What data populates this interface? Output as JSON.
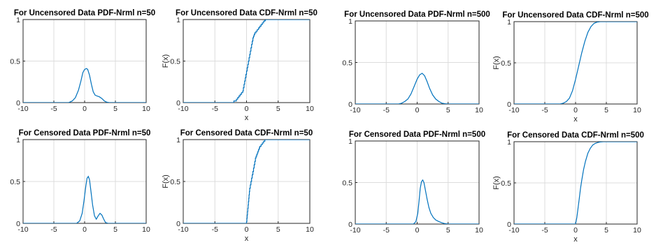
{
  "chart_data": [
    {
      "type": "line",
      "title": "For Uncensored Data PDF-Nrml n=50",
      "xlabel": "",
      "ylabel": "",
      "xlim": [
        -10,
        10
      ],
      "ylim": [
        0,
        1
      ],
      "xticks": [
        -10,
        -5,
        0,
        5,
        10
      ],
      "yticks": [
        0,
        0.5,
        1
      ],
      "ytick_labels": [
        "0",
        "0.5",
        "1"
      ],
      "grid": true,
      "series": [
        {
          "color": "#0072bd",
          "x": [
            -2.6,
            -2.0,
            -1.5,
            -1.0,
            -0.6,
            -0.3,
            0.0,
            0.3,
            0.5,
            0.8,
            1.1,
            1.4,
            1.7,
            2.0,
            2.4,
            2.8,
            3.2,
            3.6,
            4.0
          ],
          "y": [
            0.0,
            0.02,
            0.06,
            0.15,
            0.26,
            0.36,
            0.4,
            0.41,
            0.4,
            0.33,
            0.22,
            0.13,
            0.09,
            0.08,
            0.07,
            0.05,
            0.02,
            0.005,
            0.0
          ]
        }
      ]
    },
    {
      "type": "line",
      "title": "For Uncensored Data CDF-Nrml n=50",
      "xlabel": "x",
      "ylabel": "F(x)",
      "xlim": [
        -10,
        10
      ],
      "ylim": [
        0,
        1
      ],
      "xticks": [
        -10,
        -5,
        0,
        5,
        10
      ],
      "yticks": [
        0,
        0.5,
        1
      ],
      "ytick_labels": [
        "0",
        "0.5",
        "1"
      ],
      "grid": true,
      "series": [
        {
          "color": "#0072bd",
          "step": true,
          "x": [
            -2.0,
            -1.6,
            -1.4,
            -1.2,
            -1.0,
            -0.8,
            -0.6,
            -0.5,
            -0.4,
            -0.3,
            -0.2,
            -0.1,
            0.0,
            0.1,
            0.2,
            0.3,
            0.4,
            0.5,
            0.6,
            0.7,
            0.8,
            0.9,
            1.0,
            1.1,
            1.2,
            1.3,
            1.5,
            1.7,
            1.9,
            2.1,
            2.3,
            2.5,
            2.7,
            2.9,
            3.0
          ],
          "y": [
            0.02,
            0.04,
            0.06,
            0.08,
            0.1,
            0.12,
            0.14,
            0.18,
            0.22,
            0.26,
            0.3,
            0.34,
            0.38,
            0.42,
            0.46,
            0.5,
            0.54,
            0.58,
            0.62,
            0.66,
            0.7,
            0.74,
            0.78,
            0.8,
            0.82,
            0.84,
            0.86,
            0.88,
            0.9,
            0.92,
            0.94,
            0.96,
            0.98,
            0.99,
            1.0
          ]
        }
      ]
    },
    {
      "type": "line",
      "title": "For Uncensored Data PDF-Nrml n=500",
      "xlabel": "",
      "ylabel": "",
      "xlim": [
        -10,
        10
      ],
      "ylim": [
        0,
        1
      ],
      "xticks": [
        -10,
        -5,
        0,
        5,
        10
      ],
      "yticks": [
        0,
        0.5,
        1
      ],
      "ytick_labels": [
        "0",
        "0.5",
        "1"
      ],
      "grid": true,
      "series": [
        {
          "color": "#0072bd",
          "x": [
            -3.0,
            -2.5,
            -2.0,
            -1.5,
            -1.0,
            -0.5,
            0.0,
            0.4,
            0.8,
            1.2,
            1.6,
            2.0,
            2.5,
            3.0,
            3.5,
            4.0,
            4.5,
            5.0
          ],
          "y": [
            0.0,
            0.01,
            0.03,
            0.06,
            0.12,
            0.21,
            0.3,
            0.35,
            0.37,
            0.34,
            0.27,
            0.19,
            0.11,
            0.06,
            0.03,
            0.01,
            0.003,
            0.0
          ]
        }
      ]
    },
    {
      "type": "line",
      "title": "For Uncensored Data CDF-Nrml n=500",
      "xlabel": "x",
      "ylabel": "F(x)",
      "xlim": [
        -10,
        10
      ],
      "ylim": [
        0,
        1
      ],
      "xticks": [
        -10,
        -5,
        0,
        5,
        10
      ],
      "yticks": [
        0,
        0.5,
        1
      ],
      "ytick_labels": [
        "0",
        "0.5",
        "1"
      ],
      "grid": true,
      "series": [
        {
          "color": "#0072bd",
          "x": [
            -2.5,
            -2.0,
            -1.5,
            -1.0,
            -0.5,
            0.0,
            0.5,
            1.0,
            1.5,
            2.0,
            2.5,
            3.0,
            3.5,
            4.0
          ],
          "y": [
            0.0,
            0.01,
            0.03,
            0.07,
            0.16,
            0.3,
            0.46,
            0.62,
            0.76,
            0.87,
            0.94,
            0.98,
            0.995,
            1.0
          ]
        }
      ]
    },
    {
      "type": "line",
      "title": "For Censored Data PDF-Nrml n=50",
      "xlabel": "",
      "ylabel": "",
      "xlim": [
        -10,
        10
      ],
      "ylim": [
        0,
        1
      ],
      "xticks": [
        -10,
        -5,
        0,
        5,
        10
      ],
      "yticks": [
        0,
        0.5,
        1
      ],
      "ytick_labels": [
        "0",
        "0.5",
        "1"
      ],
      "grid": true,
      "series": [
        {
          "color": "#0072bd",
          "x": [
            -1.3,
            -0.8,
            -0.4,
            -0.1,
            0.2,
            0.4,
            0.6,
            0.8,
            1.0,
            1.3,
            1.6,
            1.9,
            2.2,
            2.5,
            2.8,
            3.1,
            3.4,
            3.8
          ],
          "y": [
            0.0,
            0.03,
            0.12,
            0.27,
            0.45,
            0.54,
            0.56,
            0.52,
            0.4,
            0.22,
            0.09,
            0.05,
            0.09,
            0.12,
            0.1,
            0.05,
            0.01,
            0.0
          ]
        }
      ]
    },
    {
      "type": "line",
      "title": "For Censored Data CDF-Nrml n=50",
      "xlabel": "x",
      "ylabel": "F(x)",
      "xlim": [
        -10,
        10
      ],
      "ylim": [
        0,
        1
      ],
      "xticks": [
        -10,
        -5,
        0,
        5,
        10
      ],
      "yticks": [
        0,
        0.5,
        1
      ],
      "ytick_labels": [
        "0",
        "0.5",
        "1"
      ],
      "grid": true,
      "series": [
        {
          "color": "#0072bd",
          "step": true,
          "x": [
            0.0,
            0.05,
            0.1,
            0.15,
            0.2,
            0.25,
            0.3,
            0.35,
            0.4,
            0.45,
            0.5,
            0.6,
            0.7,
            0.8,
            0.9,
            1.0,
            1.1,
            1.2,
            1.3,
            1.4,
            1.5,
            1.6,
            1.7,
            1.8,
            1.9,
            2.0,
            2.1,
            2.3,
            2.5,
            2.7,
            2.9
          ],
          "y": [
            0.02,
            0.06,
            0.1,
            0.14,
            0.18,
            0.22,
            0.26,
            0.3,
            0.34,
            0.38,
            0.42,
            0.46,
            0.5,
            0.54,
            0.58,
            0.62,
            0.66,
            0.7,
            0.74,
            0.78,
            0.8,
            0.82,
            0.84,
            0.86,
            0.88,
            0.9,
            0.92,
            0.94,
            0.96,
            0.98,
            1.0
          ]
        }
      ]
    },
    {
      "type": "line",
      "title": "For Censored Data PDF-Nrml n=500",
      "xlabel": "",
      "ylabel": "",
      "xlim": [
        -10,
        10
      ],
      "ylim": [
        0,
        1
      ],
      "xticks": [
        -10,
        -5,
        0,
        5,
        10
      ],
      "yticks": [
        0,
        0.5,
        1
      ],
      "ytick_labels": [
        "0",
        "0.5",
        "1"
      ],
      "grid": true,
      "series": [
        {
          "color": "#0072bd",
          "x": [
            -0.6,
            -0.2,
            0.1,
            0.3,
            0.5,
            0.7,
            0.9,
            1.1,
            1.3,
            1.6,
            1.9,
            2.2,
            2.6,
            3.0,
            3.5,
            4.0,
            4.5,
            5.0
          ],
          "y": [
            0.0,
            0.03,
            0.13,
            0.28,
            0.43,
            0.51,
            0.53,
            0.5,
            0.42,
            0.3,
            0.2,
            0.13,
            0.08,
            0.05,
            0.03,
            0.015,
            0.005,
            0.0
          ]
        }
      ]
    },
    {
      "type": "line",
      "title": "For Censored Data CDF-Nrml n=500",
      "xlabel": "x",
      "ylabel": "F(x)",
      "xlim": [
        -10,
        10
      ],
      "ylim": [
        0,
        1
      ],
      "xticks": [
        -10,
        -5,
        0,
        5,
        10
      ],
      "yticks": [
        0,
        0.5,
        1
      ],
      "ytick_labels": [
        "0",
        "0.5",
        "1"
      ],
      "grid": true,
      "series": [
        {
          "color": "#0072bd",
          "x": [
            0.0,
            0.2,
            0.4,
            0.6,
            0.8,
            1.0,
            1.3,
            1.6,
            2.0,
            2.4,
            2.8,
            3.2,
            3.6,
            4.0,
            4.5
          ],
          "y": [
            0.0,
            0.08,
            0.19,
            0.31,
            0.43,
            0.53,
            0.66,
            0.76,
            0.86,
            0.92,
            0.96,
            0.98,
            0.99,
            0.997,
            1.0
          ]
        }
      ]
    }
  ]
}
